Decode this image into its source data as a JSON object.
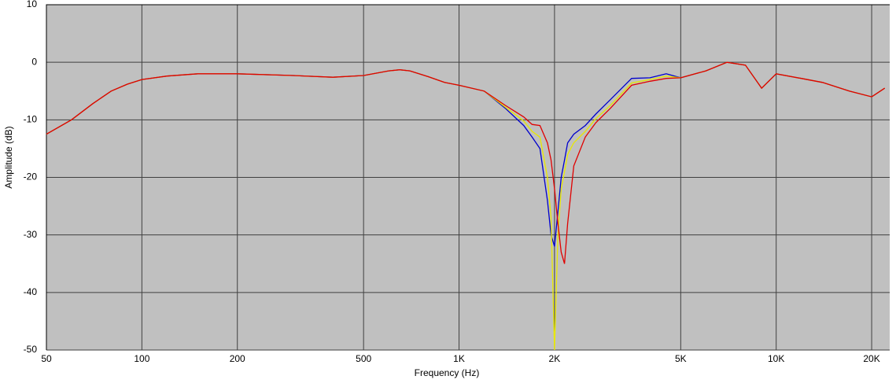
{
  "chart_data": {
    "type": "line",
    "xlabel": "Frequency (Hz)",
    "ylabel": "Amplitude (dB)",
    "xscale": "log",
    "grid": true,
    "background": "#c0c0c0",
    "xlim": [
      50,
      22800
    ],
    "ylim": [
      -50,
      10
    ],
    "xticks": [
      50,
      100,
      200,
      500,
      {
        "value": 1000,
        "label": "1K"
      },
      {
        "value": 2000,
        "label": "2K"
      },
      {
        "value": 5000,
        "label": "5K"
      },
      {
        "value": 10000,
        "label": "10K"
      },
      {
        "value": 20000,
        "label": "20K"
      }
    ],
    "yticks": [
      -50,
      -40,
      -30,
      -20,
      -10,
      0,
      10
    ],
    "x": [
      50,
      60,
      70,
      80,
      90,
      100,
      120,
      150,
      200,
      300,
      400,
      500,
      600,
      650,
      700,
      800,
      900,
      1000,
      1200,
      1400,
      1600,
      1700,
      1800,
      1900,
      1950,
      2000,
      2050,
      2100,
      2150,
      2200,
      2300,
      2500,
      2700,
      3000,
      3500,
      4000,
      4500,
      5000,
      6000,
      7000,
      8000,
      9000,
      10000,
      12000,
      14000,
      17000,
      20000,
      22000
    ],
    "series": [
      {
        "color": "#0000cc",
        "values": [
          -12.5,
          -10,
          -7.2,
          -5,
          -3.8,
          -3,
          -2.4,
          -2,
          -2,
          -2.3,
          -2.6,
          -2.3,
          -1.5,
          -1.3,
          -1.5,
          -2.5,
          -3.5,
          -4,
          -5,
          -8,
          -11,
          -13,
          -15,
          -24,
          -30,
          -32,
          -26,
          -20,
          -17,
          -14,
          -12.5,
          -11,
          -9,
          -6.5,
          -2.8,
          -2.7,
          -2,
          -2.7,
          -1.5,
          0,
          -0.5,
          -4.5,
          -2,
          -2.8,
          -3.5,
          -5,
          -6,
          -4.5
        ]
      },
      {
        "color": "#e8e800",
        "values": [
          -12.5,
          -10,
          -7.2,
          -5,
          -3.8,
          -3,
          -2.4,
          -2,
          -2,
          -2.3,
          -2.6,
          -2.3,
          -1.5,
          -1.3,
          -1.5,
          -2.5,
          -3.5,
          -4,
          -5,
          -7.8,
          -10.2,
          -12,
          -13,
          -20,
          -27,
          -50,
          -30,
          -22,
          -19,
          -16,
          -14,
          -12,
          -9.8,
          -7.5,
          -3.6,
          -3,
          -2.4,
          -2.7,
          -1.5,
          0,
          -0.5,
          -4.5,
          -2,
          -2.8,
          -3.5,
          -5,
          -6,
          -4.5
        ]
      },
      {
        "color": "#e00000",
        "values": [
          -12.5,
          -10,
          -7.2,
          -5,
          -3.8,
          -3,
          -2.4,
          -2,
          -2,
          -2.3,
          -2.6,
          -2.3,
          -1.5,
          -1.3,
          -1.5,
          -2.5,
          -3.5,
          -4,
          -5,
          -7.5,
          -9.5,
          -10.8,
          -11,
          -14,
          -17,
          -22,
          -28,
          -33,
          -35,
          -28,
          -18,
          -13,
          -10.5,
          -8,
          -4,
          -3.3,
          -2.8,
          -2.7,
          -1.5,
          0,
          -0.5,
          -4.5,
          -2,
          -2.8,
          -3.5,
          -5,
          -6,
          -4.5
        ]
      }
    ]
  }
}
